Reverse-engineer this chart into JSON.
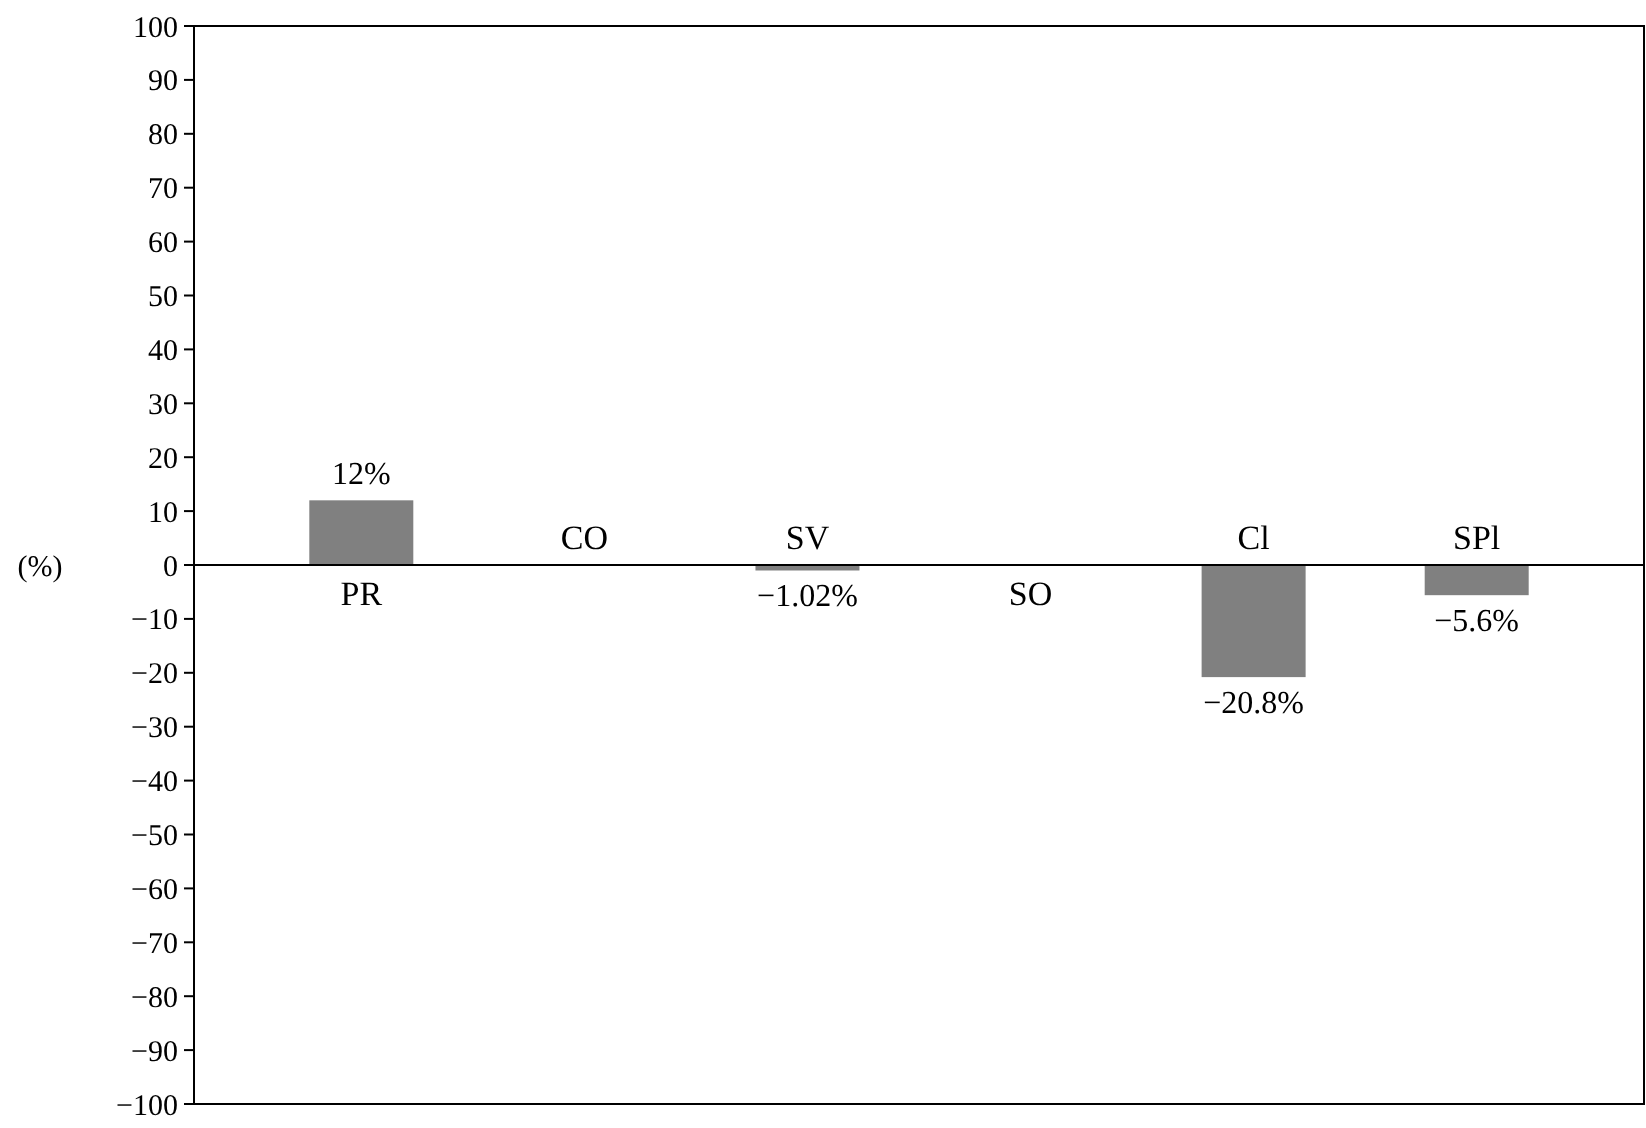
{
  "chart_data": {
    "type": "bar",
    "ylabel": "(%)",
    "categories": [
      "PR",
      "CO",
      "SV",
      "SO",
      "Cl",
      "SPl"
    ],
    "values": [
      12,
      0,
      -1.02,
      0,
      -20.8,
      -5.6
    ],
    "value_labels": [
      "12%",
      null,
      "−1.02%",
      null,
      "−20.8%",
      "−5.6%"
    ],
    "color": "#808080",
    "ylim": [
      -100,
      100
    ],
    "yticks": [
      {
        "value": -100,
        "label": "−100"
      },
      {
        "value": -90,
        "label": "−90"
      },
      {
        "value": -80,
        "label": "−80"
      },
      {
        "value": -70,
        "label": "−70"
      },
      {
        "value": -60,
        "label": "−60"
      },
      {
        "value": -50,
        "label": "−50"
      },
      {
        "value": -40,
        "label": "−40"
      },
      {
        "value": -30,
        "label": "−30"
      },
      {
        "value": -20,
        "label": "−20"
      },
      {
        "value": -10,
        "label": "−10"
      },
      0,
      10,
      20,
      30,
      40,
      50,
      60,
      70,
      80,
      90,
      100
    ],
    "grid": false
  }
}
